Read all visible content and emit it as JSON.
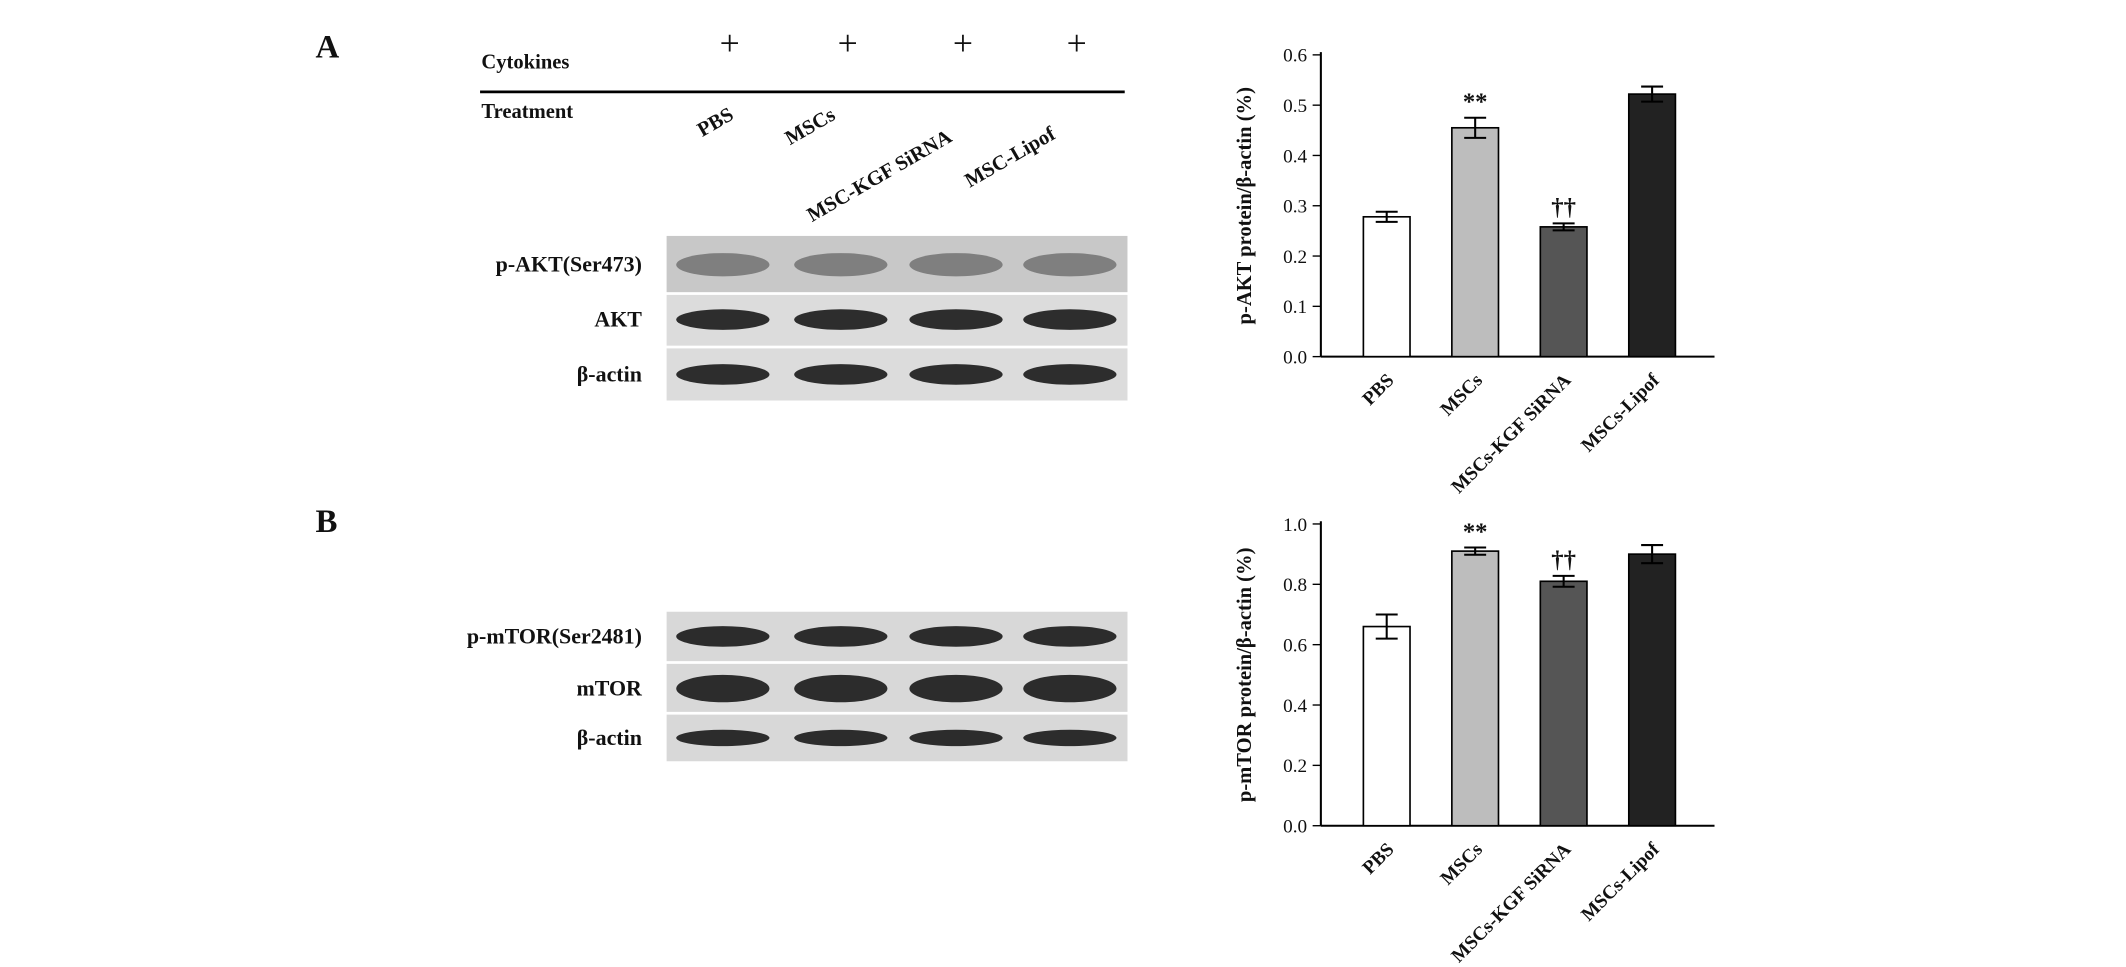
{
  "figure": {
    "panel_labels": [
      "A",
      "B"
    ],
    "header": {
      "cytokines_label": "Cytokines",
      "treatment_label": "Treatment",
      "cytokines_marks": [
        "+",
        "+",
        "+",
        "+"
      ],
      "treatments": [
        "PBS",
        "MSCs",
        "MSC-KGF SiRNA",
        "MSC-Lipof"
      ]
    },
    "blots_a": [
      "p-AKT(Ser473)",
      "AKT",
      "β-actin"
    ],
    "blots_b": [
      "p-mTOR(Ser2481)",
      "mTOR",
      "β-actin"
    ]
  },
  "chart_data": [
    {
      "type": "bar",
      "ylabel": "p-AKT protein/β-actin (%)",
      "categories": [
        "PBS",
        "MSCs",
        "MSCs-KGF SiRNA",
        "MSCs-Lipof"
      ],
      "series": [
        {
          "values": [
            0.278,
            0.455,
            0.258,
            0.522
          ],
          "errors": [
            0.01,
            0.02,
            0.007,
            0.015
          ],
          "colors": [
            "#ffffff",
            "#bdbdbd",
            "#555555",
            "#222222"
          ],
          "annotations": [
            null,
            "**",
            "††",
            null
          ]
        }
      ],
      "ylim": [
        0,
        0.6
      ],
      "yticks": [
        {
          "value": 0,
          "label": "0.0"
        },
        0.1,
        0.2,
        0.3,
        0.4,
        0.5,
        0.6
      ]
    },
    {
      "type": "bar",
      "ylabel": "p-mTOR protein/β-actin (%)",
      "categories": [
        "PBS",
        "MSCs",
        "MSCs-KGF SiRNA",
        "MSCs-Lipof"
      ],
      "series": [
        {
          "values": [
            0.66,
            0.91,
            0.81,
            0.9
          ],
          "errors": [
            0.04,
            0.012,
            0.018,
            0.03
          ],
          "colors": [
            "#ffffff",
            "#bdbdbd",
            "#555555",
            "#222222"
          ],
          "annotations": [
            null,
            "**",
            "††",
            null
          ]
        }
      ],
      "ylim": [
        0,
        1
      ],
      "yticks": [
        {
          "value": 0,
          "label": "0.0"
        },
        0.2,
        0.4,
        0.6,
        0.8,
        {
          "value": 1,
          "label": "1.0"
        }
      ]
    }
  ]
}
